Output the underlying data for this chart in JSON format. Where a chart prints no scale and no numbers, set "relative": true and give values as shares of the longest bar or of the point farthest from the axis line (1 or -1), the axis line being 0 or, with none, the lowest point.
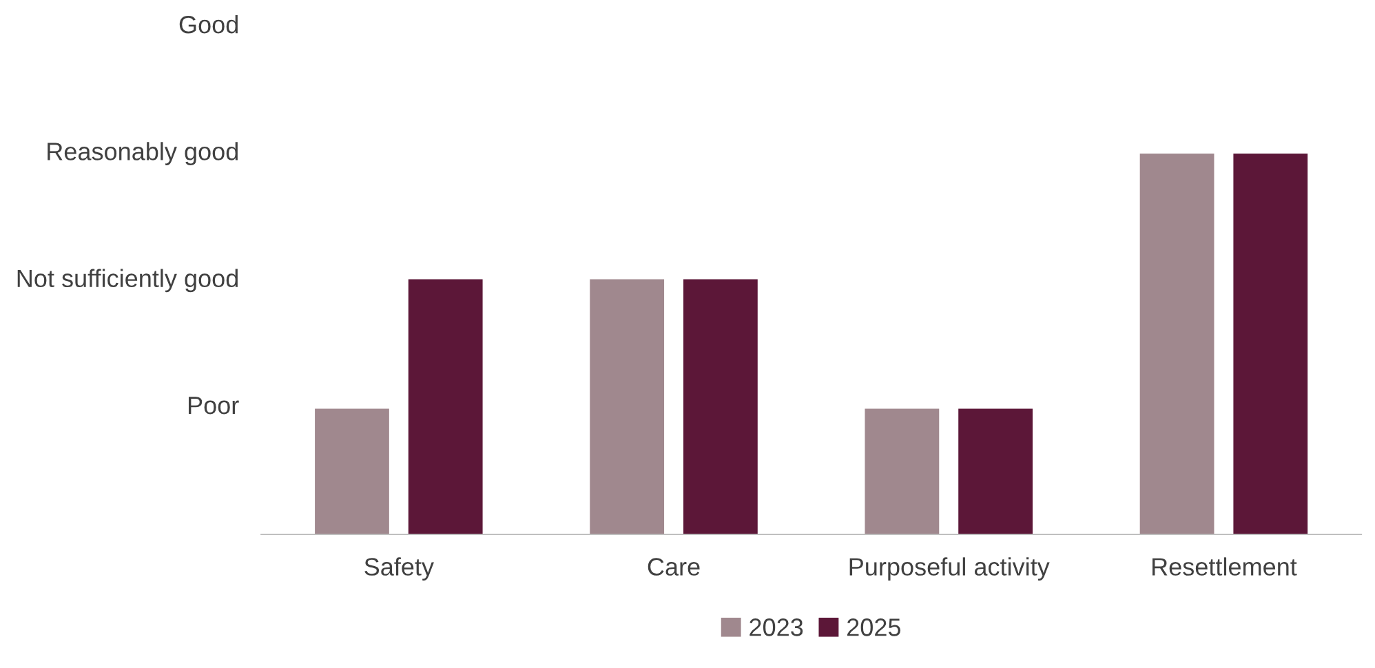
{
  "chart_data": {
    "type": "bar",
    "relative": true,
    "categories": [
      "Safety",
      "Care",
      "Purposeful activity",
      "Resettlement"
    ],
    "series": [
      {
        "name": "2023",
        "color": "#a0888e",
        "values": [
          0.33,
          0.67,
          0.33,
          1
        ]
      },
      {
        "name": "2025",
        "color": "#5c1738",
        "values": [
          0.67,
          0.67,
          0.33,
          1
        ]
      }
    ],
    "annotations": [
      "Poor",
      "Not sufficiently good",
      "Reasonably good",
      "Good"
    ],
    "grid": false,
    "legend": "bottom"
  }
}
